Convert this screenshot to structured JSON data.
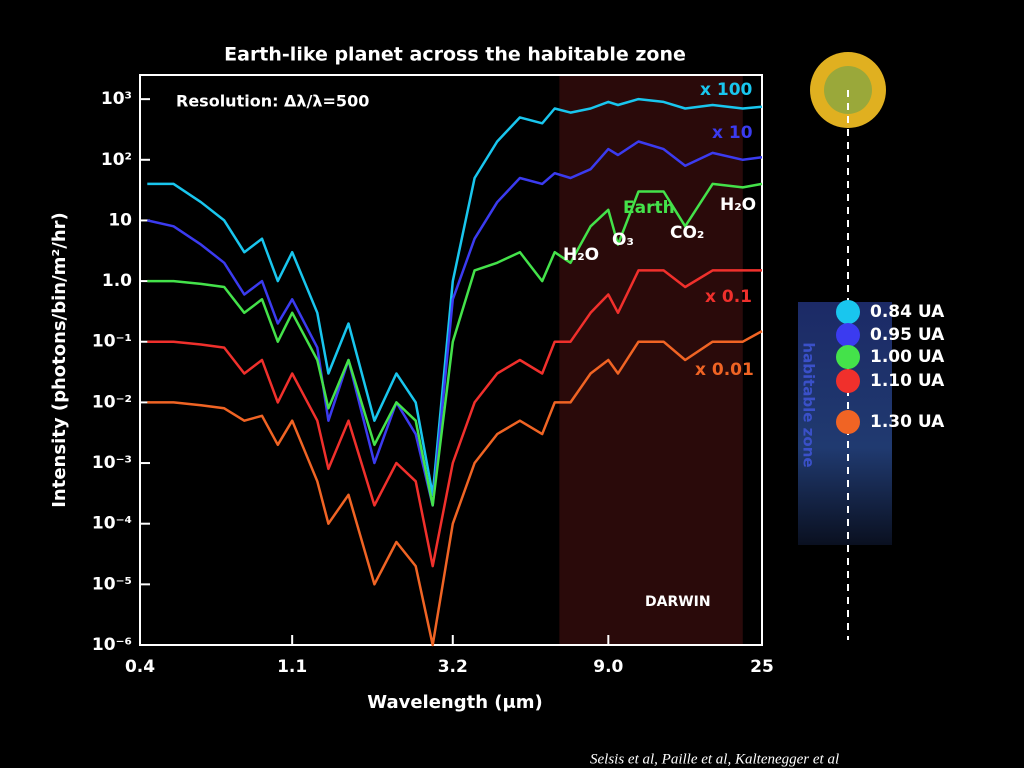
{
  "chart_data": {
    "type": "line",
    "title": "Earth-like planet across the habitable zone",
    "subtitle": "Resolution: Δλ/λ=500",
    "xlabel": "Wavelength (μm)",
    "ylabel": "Intensity (photons/bin/m²/hr)",
    "xlog": true,
    "ylog": true,
    "xlim": [
      0.4,
      25
    ],
    "xticks": [
      0.4,
      1.1,
      3.2,
      {
        "value": 9,
        "label": "9.0"
      },
      25
    ],
    "ylim": [
      1e-06,
      2500
    ],
    "yticks": [
      {
        "value": 1e-06,
        "label": "10⁻⁶"
      },
      {
        "value": 1e-05,
        "label": "10⁻⁵"
      },
      {
        "value": 0.0001,
        "label": "10⁻⁴"
      },
      {
        "value": 0.001,
        "label": "10⁻³"
      },
      {
        "value": 0.01,
        "label": "10⁻²"
      },
      {
        "value": 0.1,
        "label": "10⁻¹"
      },
      {
        "value": 1,
        "label": "1.0"
      },
      10,
      {
        "value": 100,
        "label": "10²"
      },
      {
        "value": 1000,
        "label": "10³"
      }
    ],
    "darwin_band": [
      6.5,
      22
    ],
    "x": [
      0.42,
      0.5,
      0.6,
      0.7,
      0.8,
      0.9,
      1.0,
      1.1,
      1.3,
      1.4,
      1.6,
      1.9,
      2.2,
      2.5,
      2.8,
      3.2,
      3.7,
      4.3,
      5.0,
      5.8,
      6.3,
      7.0,
      8.0,
      9.0,
      9.6,
      11,
      13,
      15,
      18,
      22,
      25
    ],
    "series": [
      {
        "name": "0.84 UA",
        "color": "#19c6ee",
        "values": [
          40,
          40,
          20,
          10,
          3,
          5,
          1,
          3,
          0.3,
          0.03,
          0.2,
          0.005,
          0.03,
          0.01,
          0.0003,
          1,
          50,
          200,
          500,
          400,
          700,
          600,
          700,
          900,
          800,
          1000,
          900,
          700,
          800,
          700,
          750
        ]
      },
      {
        "name": "0.95 UA",
        "color": "#3b3bf0",
        "values": [
          10,
          8,
          4,
          2,
          0.6,
          1,
          0.2,
          0.5,
          0.08,
          0.005,
          0.05,
          0.001,
          0.01,
          0.003,
          0.0002,
          0.5,
          5,
          20,
          50,
          40,
          60,
          50,
          70,
          150,
          120,
          200,
          150,
          80,
          130,
          100,
          110
        ]
      },
      {
        "name": "1.00 UA",
        "color": "#44e24a",
        "values": [
          1.0,
          1.0,
          0.9,
          0.8,
          0.3,
          0.5,
          0.1,
          0.3,
          0.05,
          0.008,
          0.05,
          0.002,
          0.01,
          0.005,
          0.0002,
          0.1,
          1.5,
          2,
          3,
          1,
          3,
          2,
          8,
          15,
          4,
          30,
          30,
          8,
          40,
          35,
          40
        ]
      },
      {
        "name": "1.10 UA",
        "color": "#f0302c",
        "values": [
          0.1,
          0.1,
          0.09,
          0.08,
          0.03,
          0.05,
          0.01,
          0.03,
          0.005,
          0.0008,
          0.005,
          0.0002,
          0.001,
          0.0005,
          2e-05,
          0.001,
          0.01,
          0.03,
          0.05,
          0.03,
          0.1,
          0.1,
          0.3,
          0.6,
          0.3,
          1.5,
          1.5,
          0.8,
          1.5,
          1.5,
          1.5
        ]
      },
      {
        "name": "1.30 UA",
        "color": "#f06424",
        "values": [
          0.01,
          0.01,
          0.009,
          0.008,
          0.005,
          0.006,
          0.002,
          0.005,
          0.0005,
          0.0001,
          0.0003,
          1e-05,
          5e-05,
          2e-05,
          1e-06,
          0.0001,
          0.001,
          0.003,
          0.005,
          0.003,
          0.01,
          0.01,
          0.03,
          0.05,
          0.03,
          0.1,
          0.1,
          0.05,
          0.1,
          0.1,
          0.15
        ]
      }
    ],
    "annotations": [
      "x 100",
      "x 10",
      "Earth",
      "H₂O",
      "O₃",
      "CO₂",
      "H₂O",
      "x 0.1",
      "x 0.01",
      "DARWIN"
    ],
    "legend_title": "habitable zone",
    "source": "Selsis et al, Paille et al, Kaltenegger et al"
  }
}
